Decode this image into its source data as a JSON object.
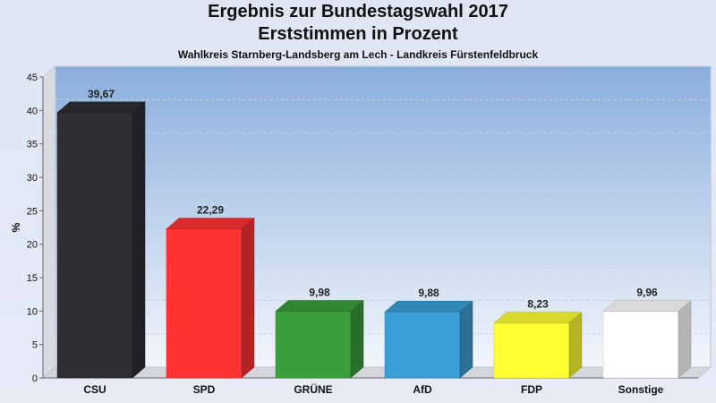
{
  "title": "Ergebnis zur Bundestagswahl 2017",
  "title_line2": "Erststimmen in Prozent",
  "subtitle": "Wahlkreis Starnberg-Landsberg am Lech - Landkreis Fürstenfeldbruck",
  "chart_data": {
    "type": "bar",
    "categories": [
      "CSU",
      "SPD",
      "GRÜNE",
      "AfD",
      "FDP",
      "Sonstige"
    ],
    "values": [
      39.67,
      22.29,
      9.98,
      9.88,
      8.23,
      9.96
    ],
    "value_labels": [
      "39,67",
      "22,29",
      "9,98",
      "9,88",
      "8,23",
      "9,96"
    ],
    "colors": [
      "#2e2f33",
      "#ff3333",
      "#3a9e3a",
      "#3a9fd6",
      "#ffff33",
      "#ffffff"
    ],
    "ylabel": "%",
    "xlabel": "",
    "ylim": [
      0,
      45
    ],
    "yticks": [
      0,
      5,
      10,
      15,
      20,
      25,
      30,
      35,
      40,
      45
    ],
    "grid": true,
    "legend": "none"
  }
}
